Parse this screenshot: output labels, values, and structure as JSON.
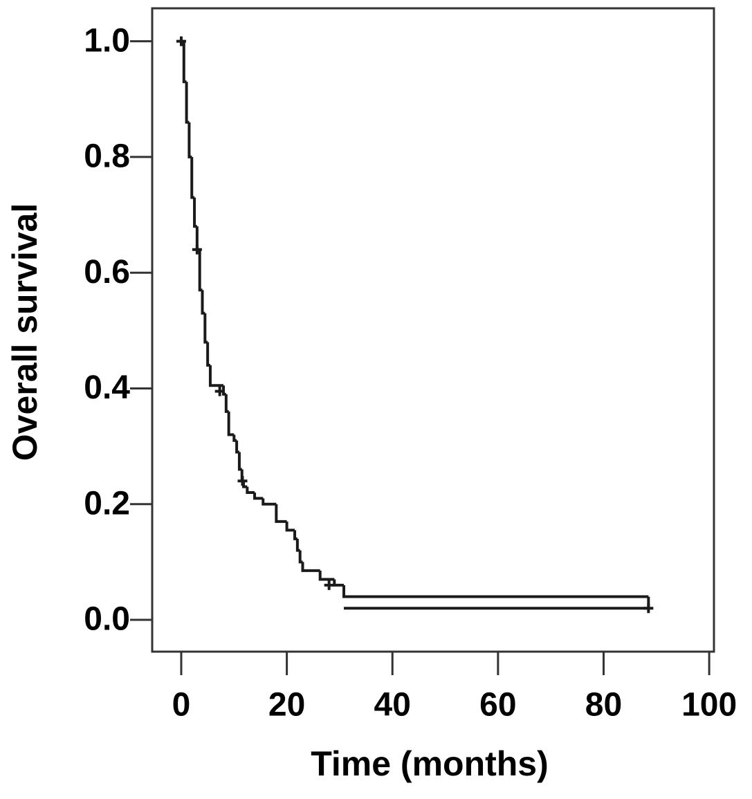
{
  "chart_data": {
    "type": "survival",
    "x_label": "Time (months)",
    "y_label": "Overall survival",
    "xlim": [
      -5.5,
      100.9
    ],
    "ylim": [
      -0.055,
      1.057
    ],
    "xticks": [
      0,
      20,
      40,
      60,
      80,
      100
    ],
    "yticks": [
      {
        "value": 0,
        "label": "0.0"
      },
      0.2,
      0.4,
      0.6,
      0.8,
      {
        "value": 1,
        "label": "1.0"
      }
    ],
    "color": "#1a1a1a",
    "x": [
      0,
      0.5,
      1,
      1.5,
      2,
      2.5,
      3,
      3.5,
      4,
      4.5,
      5,
      5.5,
      8,
      8.5,
      9,
      10,
      10.5,
      11,
      11.5,
      11.8,
      12.5,
      13.9,
      15.5,
      18,
      20,
      21.5,
      22,
      22.5,
      23,
      26.3,
      29,
      30.8
    ],
    "values": [
      1.0,
      0.93,
      0.86,
      0.8,
      0.73,
      0.68,
      0.64,
      0.57,
      0.53,
      0.48,
      0.44,
      0.405,
      0.39,
      0.36,
      0.32,
      0.31,
      0.29,
      0.26,
      0.24,
      0.23,
      0.22,
      0.21,
      0.2,
      0.17,
      0.155,
      0.14,
      0.12,
      0.1,
      0.085,
      0.07,
      0.06,
      0.04
    ],
    "end_x": 88.5,
    "end_value": 0.02,
    "censored": {
      "x": [
        0,
        3,
        7.3,
        11.6,
        28,
        88.5
      ],
      "values": [
        1.0,
        0.64,
        0.395,
        0.24,
        0.06,
        0.02
      ]
    }
  }
}
